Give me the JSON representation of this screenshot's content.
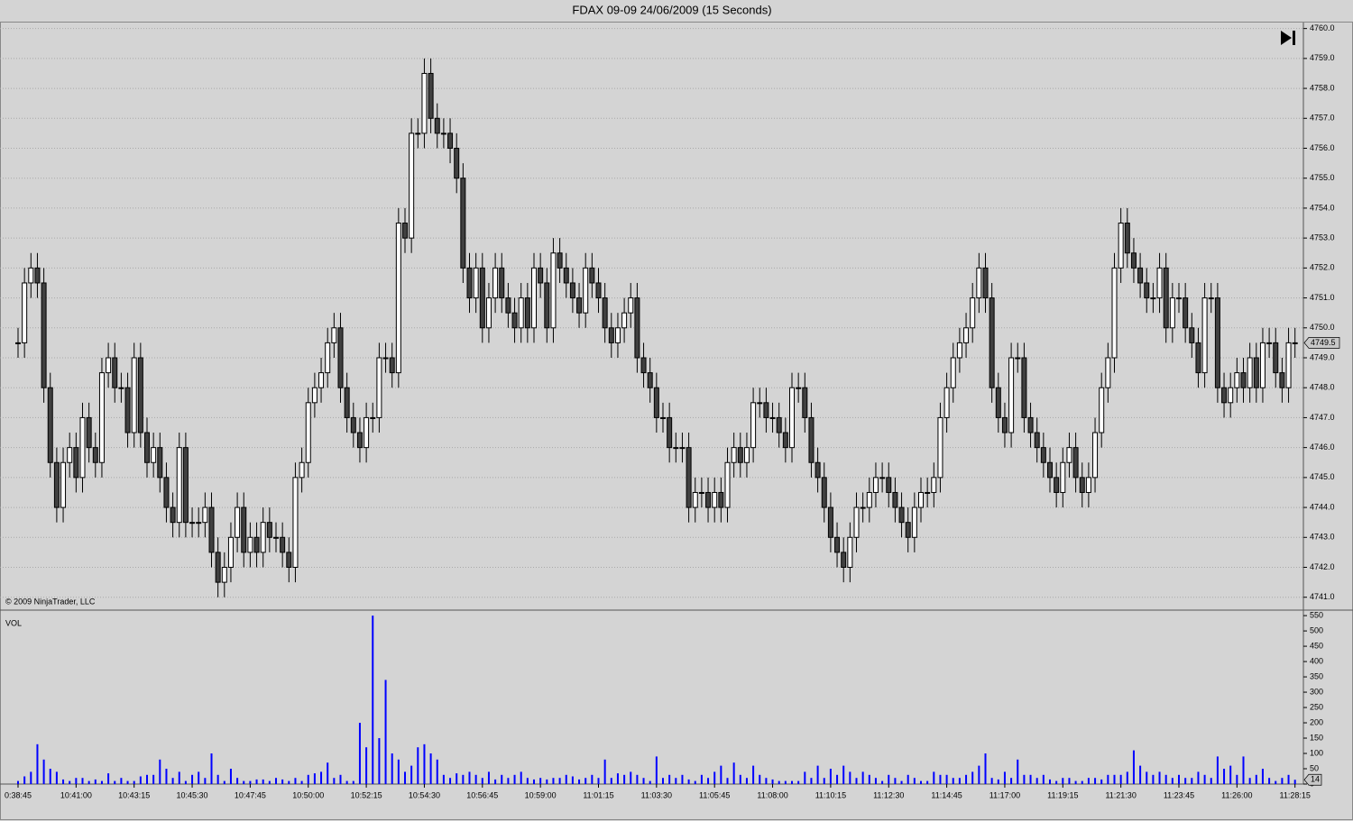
{
  "title": "FDAX 09-09  24/06/2009 (15 Seconds)",
  "copyright": "© 2009 NinjaTrader, LLC",
  "chart_data": [
    {
      "type": "candlestick",
      "up_color": "#ffffff",
      "down_color": "#404040",
      "grid": true,
      "ylim": [
        4740.6,
        4760.2
      ],
      "yticks": [
        {
          "value": 4741,
          "label": "4741.0"
        },
        {
          "value": 4742,
          "label": "4742.0"
        },
        {
          "value": 4743,
          "label": "4743.0"
        },
        {
          "value": 4744,
          "label": "4744.0"
        },
        {
          "value": 4745,
          "label": "4745.0"
        },
        {
          "value": 4746,
          "label": "4746.0"
        },
        {
          "value": 4747,
          "label": "4747.0"
        },
        {
          "value": 4748,
          "label": "4748.0"
        },
        {
          "value": 4749,
          "label": "4749.0"
        },
        {
          "value": 4750,
          "label": "4750.0"
        },
        {
          "value": 4751,
          "label": "4751.0"
        },
        {
          "value": 4752,
          "label": "4752.0"
        },
        {
          "value": 4753,
          "label": "4753.0"
        },
        {
          "value": 4754,
          "label": "4754.0"
        },
        {
          "value": 4755,
          "label": "4755.0"
        },
        {
          "value": 4756,
          "label": "4756.0"
        },
        {
          "value": 4757,
          "label": "4757.0"
        },
        {
          "value": 4758,
          "label": "4758.0"
        },
        {
          "value": 4759,
          "label": "4759.0"
        },
        {
          "value": 4760,
          "label": "4760.0"
        }
      ],
      "open": [
        4749.5,
        4749.5,
        4751.5,
        4752,
        4751.5,
        4748,
        4745.5,
        4744,
        4745.5,
        4746,
        4745,
        4747,
        4746,
        4745.5,
        4748.5,
        4749,
        4748,
        4748,
        4746.5,
        4749,
        4746.5,
        4745.5,
        4746,
        4745,
        4744,
        4743.5,
        4746,
        4743.5,
        4743.5,
        4743.5,
        4744,
        4742.5,
        4741.5,
        4742,
        4743,
        4744,
        4742.5,
        4743,
        4742.5,
        4743.5,
        4743,
        4743,
        4742.5,
        4742,
        4745,
        4745.5,
        4747.5,
        4748,
        4748.5,
        4749.5,
        4750,
        4748,
        4747,
        4746.5,
        4746,
        4747,
        4747,
        4749,
        4749,
        4748.5,
        4753.5,
        4753,
        4756.5,
        4756.5,
        4758.5,
        4757,
        4756.5,
        4756.5,
        4756,
        4755,
        4752,
        4751,
        4752,
        4750,
        4751,
        4752,
        4751,
        4750.5,
        4750,
        4751,
        4750,
        4752,
        4751.5,
        4750,
        4752.5,
        4752,
        4751.5,
        4751,
        4750.5,
        4752,
        4751.5,
        4751,
        4750,
        4749.5,
        4750,
        4750.5,
        4751,
        4749,
        4748.5,
        4748,
        4747,
        4747,
        4746,
        4746,
        4746,
        4744,
        4744.5,
        4744.5,
        4744,
        4744.5,
        4744,
        4745.5,
        4746,
        4745.5,
        4746,
        4747.5,
        4747.5,
        4747,
        4747,
        4746.5,
        4746,
        4748,
        4748,
        4747,
        4745.5,
        4745,
        4744,
        4743,
        4742.5,
        4742,
        4743,
        4744,
        4744,
        4744.5,
        4745,
        4745,
        4744.5,
        4744,
        4743.5,
        4743,
        4744,
        4744.5,
        4744.5,
        4745,
        4747,
        4748,
        4749,
        4749.5,
        4750,
        4751,
        4752,
        4751,
        4748,
        4747,
        4746.5,
        4749,
        4749,
        4747,
        4746.5,
        4746,
        4745.5,
        4745,
        4744.5,
        4745.5,
        4746,
        4745,
        4744.5,
        4745,
        4746.5,
        4748,
        4749,
        4752,
        4753.5,
        4752.5,
        4752,
        4751.5,
        4751,
        4751,
        4752,
        4750,
        4751,
        4751,
        4750,
        4749.5,
        4748.5,
        4751,
        4751,
        4748,
        4747.5,
        4748,
        4748.5,
        4748,
        4749,
        4748,
        4749.5,
        4749.5,
        4748.5,
        4748,
        4749.5
      ],
      "high": [
        4750,
        4752,
        4752.5,
        4752.5,
        4752,
        4748.5,
        4746,
        4746,
        4746.5,
        4746.5,
        4747.5,
        4747.5,
        4746.5,
        4749,
        4749.5,
        4749.5,
        4748.5,
        4748.5,
        4749.5,
        4749.5,
        4747,
        4746.5,
        4746.5,
        4745.5,
        4744.5,
        4746.5,
        4746.5,
        4744,
        4744,
        4744.5,
        4744.5,
        4743,
        4742.5,
        4743.5,
        4744.5,
        4744.5,
        4743.5,
        4743.5,
        4744,
        4744,
        4743.5,
        4743.5,
        4743,
        4745.5,
        4746,
        4748,
        4748.5,
        4749,
        4750,
        4750.5,
        4750.5,
        4748.5,
        4747.5,
        4747,
        4747.5,
        4747.5,
        4749.5,
        4749.5,
        4749.5,
        4754,
        4754,
        4757,
        4757,
        4759,
        4759,
        4757.5,
        4757,
        4757,
        4756.5,
        4755.5,
        4752.5,
        4752.5,
        4752.5,
        4751.5,
        4752.5,
        4752.5,
        4751.5,
        4751,
        4751.5,
        4751.5,
        4752.5,
        4752.5,
        4752,
        4753,
        4753,
        4752.5,
        4752,
        4751.5,
        4752.5,
        4752.5,
        4752,
        4751.5,
        4750.5,
        4750.5,
        4751,
        4751.5,
        4751.5,
        4749.5,
        4749,
        4748.5,
        4747.5,
        4747.5,
        4746.5,
        4746.5,
        4746.5,
        4745,
        4745,
        4745,
        4745,
        4745,
        4746,
        4746.5,
        4746.5,
        4746.5,
        4748,
        4748,
        4748,
        4747.5,
        4747.5,
        4747,
        4748.5,
        4748.5,
        4748.5,
        4747.5,
        4746,
        4745.5,
        4744.5,
        4743.5,
        4743,
        4743.5,
        4744.5,
        4744.5,
        4745,
        4745.5,
        4745.5,
        4745.5,
        4745,
        4744.5,
        4744,
        4744.5,
        4745,
        4745,
        4745.5,
        4747.5,
        4748.5,
        4749.5,
        4750,
        4750.5,
        4751.5,
        4752.5,
        4752.5,
        4751.5,
        4748.5,
        4747.5,
        4749.5,
        4749.5,
        4749.5,
        4747.5,
        4747,
        4746.5,
        4746,
        4745.5,
        4746,
        4746.5,
        4746.5,
        4745.5,
        4745.5,
        4747,
        4748.5,
        4749.5,
        4752.5,
        4754,
        4754,
        4753,
        4752.5,
        4752,
        4751.5,
        4752.5,
        4752.5,
        4751.5,
        4751.5,
        4751.5,
        4750.5,
        4750,
        4751.5,
        4751.5,
        4751.5,
        4748.5,
        4748.5,
        4749,
        4749,
        4749.5,
        4749.5,
        4750,
        4750,
        4750,
        4749,
        4750,
        4750
      ],
      "low": [
        4749,
        4749,
        4751,
        4751,
        4747.5,
        4745,
        4743.5,
        4743.5,
        4745,
        4744.5,
        4744.5,
        4745.5,
        4745,
        4745,
        4748,
        4747.5,
        4747.5,
        4746,
        4746,
        4746,
        4745,
        4745,
        4744.5,
        4743.5,
        4743,
        4743,
        4743,
        4743,
        4743,
        4743,
        4742,
        4741,
        4741,
        4741.5,
        4742.5,
        4742,
        4742,
        4742,
        4742,
        4742.5,
        4742.5,
        4742,
        4741.5,
        4741.5,
        4744.5,
        4745,
        4747,
        4747.5,
        4748,
        4749,
        4747.5,
        4746.5,
        4746,
        4745.5,
        4745.5,
        4746.5,
        4746.5,
        4748.5,
        4748,
        4748,
        4752.5,
        4752.5,
        4756,
        4756,
        4756.5,
        4756,
        4756,
        4755.5,
        4754.5,
        4751.5,
        4750.5,
        4750.5,
        4749.5,
        4749.5,
        4750.5,
        4750.5,
        4750,
        4749.5,
        4749.5,
        4749.5,
        4749.5,
        4751,
        4749.5,
        4749.5,
        4751.5,
        4751,
        4750.5,
        4750,
        4750,
        4751,
        4750.5,
        4749.5,
        4749,
        4749,
        4749.5,
        4750,
        4748.5,
        4748,
        4747.5,
        4746.5,
        4746.5,
        4745.5,
        4745.5,
        4745.5,
        4743.5,
        4743.5,
        4744,
        4743.5,
        4743.5,
        4743.5,
        4743.5,
        4745,
        4745,
        4745,
        4745.5,
        4747,
        4746.5,
        4746.5,
        4746,
        4745.5,
        4745.5,
        4747.5,
        4746.5,
        4745,
        4744.5,
        4743.5,
        4742.5,
        4742,
        4741.5,
        4741.5,
        4742.5,
        4743.5,
        4743.5,
        4744,
        4744.5,
        4744,
        4743.5,
        4743,
        4742.5,
        4742.5,
        4743.5,
        4744,
        4744,
        4744.5,
        4746.5,
        4747.5,
        4748.5,
        4749,
        4749.5,
        4750.5,
        4750.5,
        4747.5,
        4746.5,
        4746,
        4746,
        4748.5,
        4746.5,
        4746,
        4745.5,
        4745,
        4744.5,
        4744,
        4744,
        4745,
        4744.5,
        4744,
        4744,
        4744.5,
        4746,
        4747.5,
        4748.5,
        4751.5,
        4752,
        4751.5,
        4751,
        4750.5,
        4750.5,
        4750.5,
        4749.5,
        4749.5,
        4750.5,
        4749.5,
        4749,
        4748,
        4748,
        4750.5,
        4747.5,
        4747,
        4747,
        4747.5,
        4747.5,
        4747.5,
        4747.5,
        4747.5,
        4749,
        4748,
        4747.5,
        4747.5,
        4749
      ],
      "close": [
        4749.5,
        4751.5,
        4752,
        4751.5,
        4748,
        4745.5,
        4744,
        4745.5,
        4746,
        4745,
        4747,
        4746,
        4745.5,
        4748.5,
        4749,
        4748,
        4748,
        4746.5,
        4749,
        4746.5,
        4745.5,
        4746,
        4745,
        4744,
        4743.5,
        4746,
        4743.5,
        4743.5,
        4743.5,
        4744,
        4742.5,
        4741.5,
        4742,
        4743,
        4744,
        4742.5,
        4743,
        4742.5,
        4743.5,
        4743,
        4743,
        4742.5,
        4742,
        4745,
        4745.5,
        4747.5,
        4748,
        4748.5,
        4749.5,
        4750,
        4748,
        4747,
        4746.5,
        4746,
        4747,
        4747,
        4749,
        4749,
        4748.5,
        4753.5,
        4753,
        4756.5,
        4756.5,
        4758.5,
        4757,
        4756.5,
        4756.5,
        4756,
        4755,
        4752,
        4751,
        4752,
        4750,
        4751,
        4752,
        4751,
        4750.5,
        4750,
        4751,
        4750,
        4752,
        4751.5,
        4750,
        4752.5,
        4752,
        4751.5,
        4751,
        4750.5,
        4752,
        4751.5,
        4751,
        4750,
        4749.5,
        4750,
        4750.5,
        4751,
        4749,
        4748.5,
        4748,
        4747,
        4747,
        4746,
        4746,
        4746,
        4744,
        4744.5,
        4744.5,
        4744,
        4744.5,
        4744,
        4745.5,
        4746,
        4745.5,
        4746,
        4747.5,
        4747.5,
        4747,
        4747,
        4746.5,
        4746,
        4748,
        4748,
        4747,
        4745.5,
        4745,
        4744,
        4743,
        4742.5,
        4742,
        4743,
        4744,
        4744,
        4744.5,
        4745,
        4745,
        4744.5,
        4744,
        4743.5,
        4743,
        4744,
        4744.5,
        4744.5,
        4745,
        4747,
        4748,
        4749,
        4749.5,
        4750,
        4751,
        4752,
        4751,
        4748,
        4747,
        4746.5,
        4749,
        4749,
        4747,
        4746.5,
        4746,
        4745.5,
        4745,
        4744.5,
        4745.5,
        4746,
        4745,
        4744.5,
        4745,
        4746.5,
        4748,
        4749,
        4752,
        4753.5,
        4752.5,
        4752,
        4751.5,
        4751,
        4751,
        4752,
        4750,
        4751,
        4751,
        4750,
        4749.5,
        4748.5,
        4751,
        4751,
        4748,
        4747.5,
        4748,
        4748.5,
        4748,
        4749,
        4748,
        4749.5,
        4749.5,
        4748.5,
        4748,
        4749.5,
        4749.5
      ]
    },
    {
      "type": "bar",
      "label": "VOL",
      "color": "#0000ff",
      "ylim": [
        0,
        565
      ],
      "yticks": [
        0,
        50,
        100,
        150,
        200,
        250,
        300,
        350,
        400,
        450,
        500,
        550
      ],
      "categories": [
        "0:38:45",
        null,
        null,
        null,
        null,
        null,
        null,
        null,
        null,
        "10:41:00",
        null,
        null,
        null,
        null,
        null,
        null,
        null,
        null,
        "10:43:15",
        null,
        null,
        null,
        null,
        null,
        null,
        null,
        null,
        "10:45:30",
        null,
        null,
        null,
        null,
        null,
        null,
        null,
        null,
        "10:47:45",
        null,
        null,
        null,
        null,
        null,
        null,
        null,
        null,
        "10:50:00",
        null,
        null,
        null,
        null,
        null,
        null,
        null,
        null,
        "10:52:15",
        null,
        null,
        null,
        null,
        null,
        null,
        null,
        null,
        "10:54:30",
        null,
        null,
        null,
        null,
        null,
        null,
        null,
        null,
        "10:56:45",
        null,
        null,
        null,
        null,
        null,
        null,
        null,
        null,
        "10:59:00",
        null,
        null,
        null,
        null,
        null,
        null,
        null,
        null,
        "11:01:15",
        null,
        null,
        null,
        null,
        null,
        null,
        null,
        null,
        "11:03:30",
        null,
        null,
        null,
        null,
        null,
        null,
        null,
        null,
        "11:05:45",
        null,
        null,
        null,
        null,
        null,
        null,
        null,
        null,
        "11:08:00",
        null,
        null,
        null,
        null,
        null,
        null,
        null,
        null,
        "11:10:15",
        null,
        null,
        null,
        null,
        null,
        null,
        null,
        null,
        "11:12:30",
        null,
        null,
        null,
        null,
        null,
        null,
        null,
        null,
        "11:14:45",
        null,
        null,
        null,
        null,
        null,
        null,
        null,
        null,
        "11:17:00",
        null,
        null,
        null,
        null,
        null,
        null,
        null,
        null,
        "11:19:15",
        null,
        null,
        null,
        null,
        null,
        null,
        null,
        null,
        "11:21:30",
        null,
        null,
        null,
        null,
        null,
        null,
        null,
        null,
        "11:23:45",
        null,
        null,
        null,
        null,
        null,
        null,
        null,
        null,
        "11:26:00",
        null,
        null,
        null,
        null,
        null,
        null,
        null,
        null,
        "11:28:15"
      ],
      "values": [
        10,
        25,
        40,
        130,
        80,
        50,
        40,
        15,
        10,
        20,
        20,
        10,
        15,
        10,
        35,
        10,
        20,
        10,
        10,
        25,
        30,
        30,
        80,
        50,
        20,
        40,
        10,
        30,
        40,
        20,
        100,
        30,
        10,
        50,
        20,
        10,
        10,
        15,
        15,
        10,
        20,
        15,
        10,
        20,
        10,
        30,
        35,
        40,
        70,
        20,
        30,
        10,
        10,
        200,
        120,
        550,
        150,
        340,
        100,
        80,
        40,
        60,
        120,
        130,
        100,
        80,
        30,
        20,
        35,
        30,
        40,
        30,
        20,
        40,
        15,
        30,
        20,
        30,
        40,
        20,
        15,
        20,
        15,
        20,
        20,
        30,
        25,
        15,
        20,
        30,
        20,
        80,
        20,
        35,
        30,
        40,
        30,
        20,
        10,
        90,
        20,
        30,
        20,
        30,
        15,
        10,
        30,
        20,
        40,
        60,
        20,
        70,
        30,
        20,
        60,
        30,
        20,
        15,
        10,
        10,
        10,
        10,
        40,
        20,
        60,
        20,
        50,
        30,
        60,
        40,
        20,
        40,
        30,
        20,
        10,
        30,
        20,
        10,
        30,
        20,
        10,
        10,
        40,
        30,
        30,
        20,
        20,
        30,
        40,
        60,
        100,
        20,
        15,
        40,
        20,
        80,
        30,
        30,
        20,
        30,
        15,
        10,
        20,
        20,
        10,
        10,
        20,
        20,
        15,
        30,
        30,
        30,
        40,
        110,
        60,
        40,
        30,
        40,
        30,
        20,
        30,
        20,
        20,
        40,
        30,
        20,
        90,
        50,
        60,
        30,
        90,
        20,
        30,
        50,
        20,
        10,
        20,
        30,
        14
      ]
    }
  ]
}
